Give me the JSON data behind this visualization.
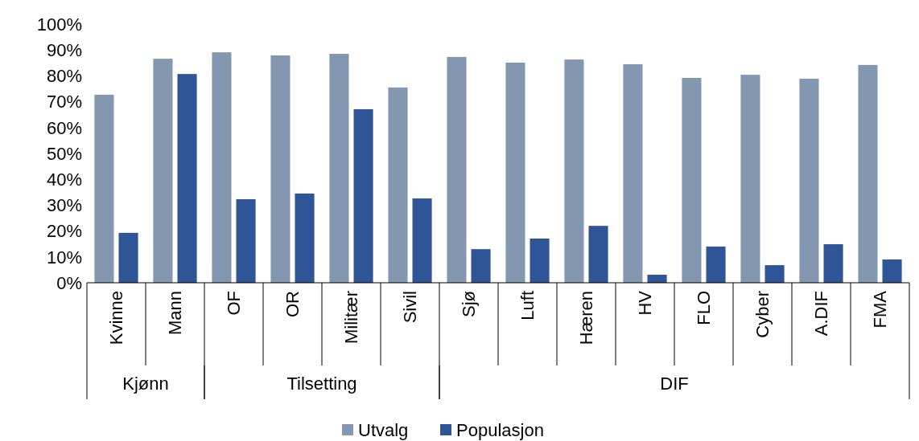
{
  "chart_data": {
    "type": "bar",
    "categories": [
      "Kvinne",
      "Mann",
      "OF",
      "OR",
      "Militær",
      "Sivil",
      "Sjø",
      "Luft",
      "Hæren",
      "HV",
      "FLO",
      "Cyber",
      "A.DIF",
      "FMA"
    ],
    "series": [
      {
        "name": "Utvalg",
        "color": "#8497b0",
        "values": [
          72.7,
          86.6,
          89.1,
          87.9,
          88.5,
          75.5,
          87.3,
          85.1,
          86.3,
          84.5,
          79.2,
          80.4,
          78.9,
          84.2
        ]
      },
      {
        "name": "Populasjon",
        "color": "#2f5597",
        "values": [
          19.3,
          80.7,
          32.3,
          34.5,
          67.1,
          32.6,
          13.0,
          17.1,
          22.0,
          3.1,
          14.0,
          6.8,
          14.9,
          9.0
        ]
      }
    ],
    "ylim": [
      0,
      100
    ],
    "yticks": [
      {
        "value": 0,
        "label": "0%"
      },
      {
        "value": 10,
        "label": "10%"
      },
      {
        "value": 20,
        "label": "20%"
      },
      {
        "value": 30,
        "label": "30%"
      },
      {
        "value": 40,
        "label": "40%"
      },
      {
        "value": 50,
        "label": "50%"
      },
      {
        "value": 60,
        "label": "60%"
      },
      {
        "value": 70,
        "label": "70%"
      },
      {
        "value": 80,
        "label": "80%"
      },
      {
        "value": 90,
        "label": "90%"
      },
      {
        "value": 100,
        "label": "100%"
      }
    ],
    "annotations": [
      "Kjønn",
      "Tilsetting",
      "DIF"
    ],
    "legend": "bottom"
  }
}
